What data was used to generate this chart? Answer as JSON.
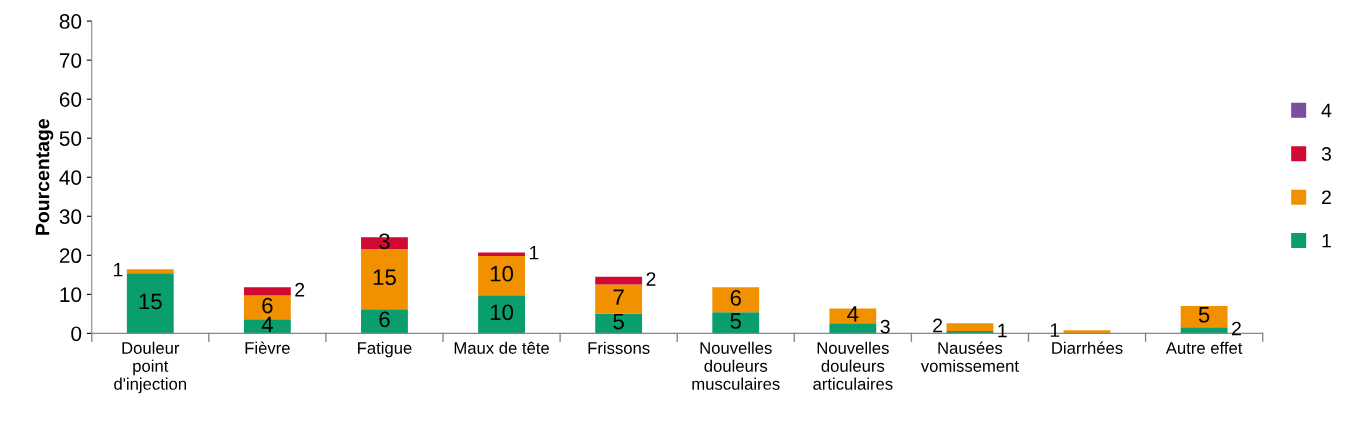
{
  "chart_data": {
    "type": "bar",
    "stacked": true,
    "ylabel": "Pourcentage",
    "categories": [
      "Douleur\npoint\nd'injection",
      "Fièvre",
      "Fatigue",
      "Maux de tête",
      "Frissons",
      "Nouvelles\ndouleurs\nmusculaires",
      "Nouvelles\ndouleurs\narticulaires",
      "Nausées\nvomissement",
      "Diarrhées",
      "Autre effet"
    ],
    "series": [
      {
        "name": "1",
        "color": "#0a9e6e",
        "values": [
          15.4,
          3.6,
          6.2,
          9.8,
          5.1,
          5.4,
          2.6,
          0.6,
          null,
          1.6
        ],
        "value_labels": [
          "15",
          "4",
          "6",
          "10",
          "5",
          "5",
          "3",
          "1",
          null,
          "2"
        ]
      },
      {
        "name": "2",
        "color": "#f29100",
        "values": [
          1.0,
          6.1,
          15.4,
          10.0,
          7.4,
          6.4,
          3.8,
          2.0,
          0.8,
          5.4
        ],
        "value_labels": [
          "1",
          "6",
          "15",
          "10",
          "7",
          "6",
          "4",
          "2",
          "1",
          "5"
        ]
      },
      {
        "name": "3",
        "color": "#d10a33",
        "values": [
          null,
          2.1,
          3.0,
          0.9,
          2.0,
          null,
          null,
          null,
          null,
          null
        ],
        "value_labels": [
          null,
          "2",
          "3",
          "1",
          "2",
          null,
          null,
          null,
          null,
          null
        ]
      },
      {
        "name": "4",
        "color": "#7a4fa0",
        "values": [
          null,
          null,
          null,
          null,
          null,
          null,
          null,
          null,
          null,
          null
        ]
      }
    ],
    "ylim": [
      0,
      80
    ],
    "yticks": [
      0,
      10,
      20,
      30,
      40,
      50,
      60,
      70,
      80
    ],
    "grid": false,
    "legend": "right"
  }
}
